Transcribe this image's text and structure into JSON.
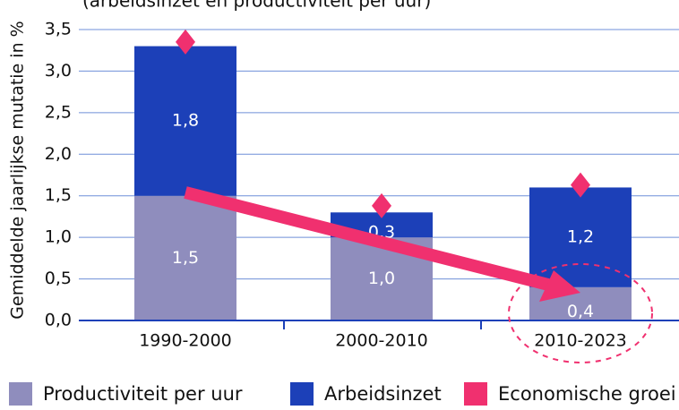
{
  "chart_data": {
    "type": "bar",
    "stacked": true,
    "subtitle": "(arbeidsinzet en productiviteit per uur)",
    "y_label": "Gemiddelde jaarlijkse mutatie in %",
    "categories": [
      "1990-2000",
      "2000-2010",
      "2010-2023"
    ],
    "series": [
      {
        "name": "Productiviteit per uur",
        "color": "#8f8dbd",
        "kind": "bar",
        "values": [
          1.5,
          1.0,
          0.4
        ],
        "value_labels": [
          "1,5",
          "1,0",
          "0,4"
        ]
      },
      {
        "name": "Arbeidsinzet",
        "color": "#1c40b8",
        "kind": "bar",
        "values": [
          1.8,
          0.3,
          1.2
        ],
        "value_labels": [
          "1,8",
          "0,3",
          "1,2"
        ]
      },
      {
        "name": "Economische groei",
        "color": "#f0306f",
        "kind": "diamond",
        "values": [
          3.35,
          1.38,
          1.63
        ]
      }
    ],
    "ylim": [
      0,
      3.5
    ],
    "yticks": [
      {
        "value": 0,
        "label": "0,0"
      },
      {
        "value": 0.5,
        "label": "0,5"
      },
      {
        "value": 1,
        "label": "1,0"
      },
      {
        "value": 1.5,
        "label": "1,5"
      },
      {
        "value": 2,
        "label": "2,0"
      },
      {
        "value": 2.5,
        "label": "2,5"
      },
      {
        "value": 3,
        "label": "3,0"
      },
      {
        "value": 3.5,
        "label": "3,5"
      }
    ],
    "grid": true
  }
}
